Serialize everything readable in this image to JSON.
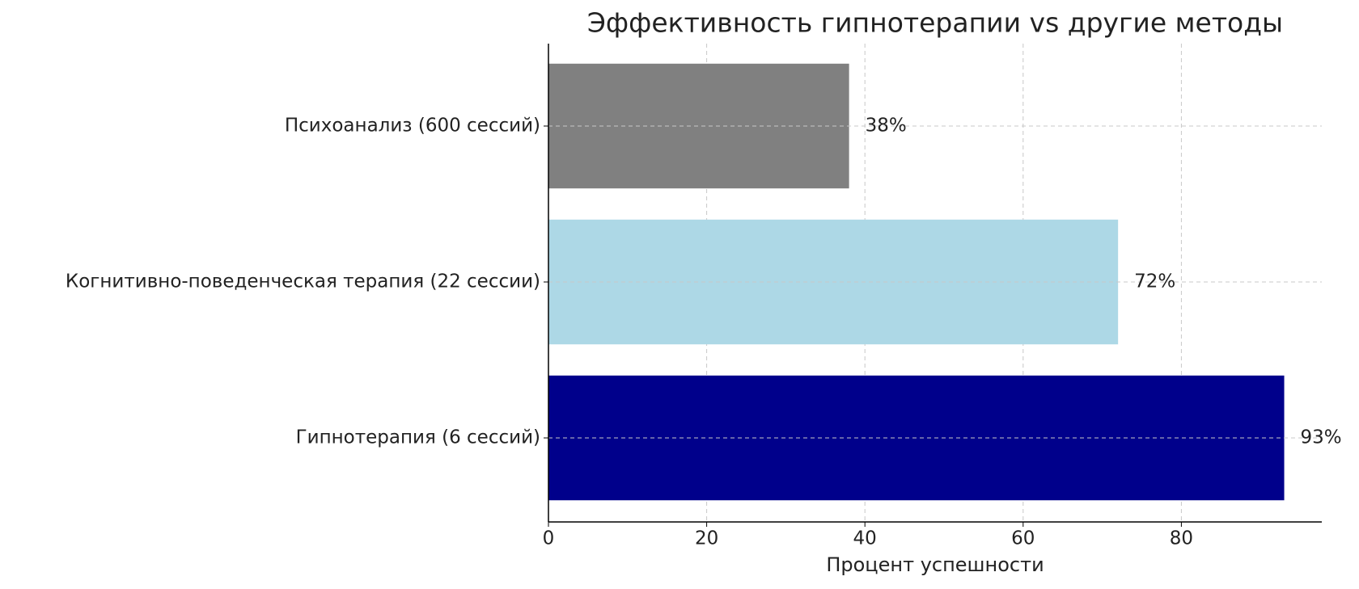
{
  "chart_data": {
    "type": "barh",
    "title": "Эффективность гипнотерапии vs другие методы",
    "x_label": "Процент успешности",
    "categories": [
      "Гипнотерапия (6 сессий)",
      "Когнитивно-поведенческая терапия (22 сессии)",
      "Психоанализ (600 сессий)"
    ],
    "values": [
      93,
      72,
      38
    ],
    "value_labels": [
      "93%",
      "72%",
      "38%"
    ],
    "colors": [
      "#00008b",
      "#add8e6",
      "#808080"
    ],
    "xlim": [
      0,
      97.75
    ],
    "xticks": [
      0,
      20,
      40,
      60,
      80
    ],
    "grid": true
  }
}
